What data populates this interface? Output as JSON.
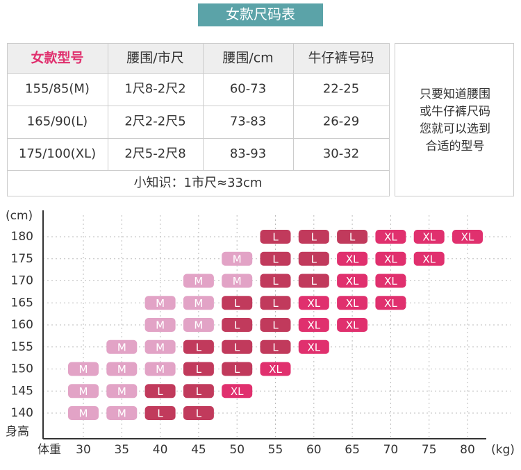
{
  "header": {
    "title": "女款尺码表"
  },
  "table": {
    "header": [
      "女款型号",
      "腰围/市尺",
      "腰围/cm",
      "牛仔裤号码"
    ],
    "rows": [
      [
        "155/85(M)",
        "1尺8-2尺2",
        "60-73",
        "22-25"
      ],
      [
        "165/90(L)",
        "2尺2-2尺5",
        "73-83",
        "26-29"
      ],
      [
        "175/100(XL)",
        "2尺5-2尺8",
        "83-93",
        "30-32"
      ]
    ],
    "note": "小知识：1市尺≈33cm"
  },
  "side_note": {
    "lines": [
      "只要知道腰围",
      "或牛仔裤尺码",
      "您就可以选到",
      "合适的型号"
    ]
  },
  "size_grid": {
    "y_unit": "(cm)",
    "y_title": "身高",
    "x_title": "体重",
    "x_unit": "(kg)",
    "heights": [
      180,
      175,
      170,
      165,
      160,
      155,
      150,
      145,
      140
    ],
    "weights": [
      30,
      35,
      40,
      45,
      50,
      55,
      60,
      65,
      70,
      75,
      80
    ],
    "size_colors": {
      "M": "#e2a3c6",
      "L": "#c13a5c",
      "XL": "#e0306e"
    },
    "cells": [
      [
        null,
        null,
        null,
        null,
        null,
        "L",
        "L",
        "L",
        "XL",
        "XL",
        "XL"
      ],
      [
        null,
        null,
        null,
        null,
        "M",
        "L",
        "L",
        "XL",
        "XL",
        "XL",
        null
      ],
      [
        null,
        null,
        null,
        "M",
        "M",
        "L",
        "L",
        "XL",
        "XL",
        null,
        null
      ],
      [
        null,
        null,
        "M",
        "M",
        "L",
        "L",
        "XL",
        "XL",
        "XL",
        null,
        null
      ],
      [
        null,
        null,
        "M",
        "M",
        "L",
        "L",
        "XL",
        "XL",
        null,
        null,
        null
      ],
      [
        null,
        "M",
        "M",
        "L",
        "L",
        "L",
        "XL",
        null,
        null,
        null,
        null
      ],
      [
        "M",
        "M",
        "M",
        "L",
        "L",
        "XL",
        null,
        null,
        null,
        null,
        null
      ],
      [
        "M",
        "M",
        "L",
        "L",
        "XL",
        null,
        null,
        null,
        null,
        null,
        null
      ],
      [
        "M",
        "M",
        "L",
        "L",
        null,
        null,
        null,
        null,
        null,
        null,
        null
      ]
    ]
  }
}
